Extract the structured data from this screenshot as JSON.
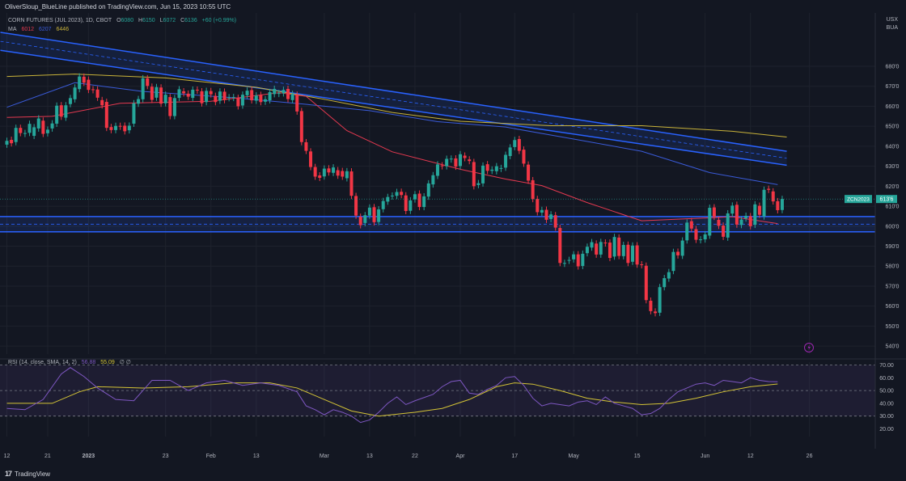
{
  "header": {
    "banner": "OliverSloup_BlueLine published on TradingView.com, Jun 15, 2023 10:55 UTC",
    "symbol_title": "CORN FUTURES (JUL 2023), 1D, CBOT",
    "ohlc": {
      "o_label": "O",
      "o": "6080",
      "h_label": "H",
      "h": "6150",
      "l_label": "L",
      "l": "6072",
      "c_label": "C",
      "c": "6136",
      "change": "+60 (+0.99%)"
    },
    "ma_label": "MA",
    "ma_values": [
      "6012",
      "6207",
      "6446"
    ],
    "currency": "USX",
    "currency_sub": "BUA"
  },
  "colors": {
    "background": "#131722",
    "up": "#26a69a",
    "down": "#f23645",
    "ma_short": "#e53950",
    "ma_mid": "#3a5bd9",
    "ma_long": "#c9b33a",
    "channel": "#2962ff",
    "rsi_line": "#7e57c2",
    "rsi_ma": "#d4c436",
    "rsi_band": "#7e57c2"
  },
  "price_axis": {
    "labels": [
      "680'0",
      "670'0",
      "660'0",
      "650'0",
      "640'0",
      "630'0",
      "620'0",
      "610'0",
      "600'0",
      "590'0",
      "580'0",
      "570'0",
      "560'0",
      "550'0",
      "540'0"
    ],
    "values": [
      680,
      670,
      660,
      650,
      640,
      630,
      620,
      610,
      600,
      590,
      580,
      570,
      560,
      550,
      540
    ],
    "range": [
      536,
      697
    ]
  },
  "current_price": {
    "tag": "ZCN2023",
    "value": "613'6"
  },
  "time_axis": {
    "labels": [
      "12",
      "21",
      "2023",
      "23",
      "Feb",
      "13",
      "Mar",
      "13",
      "22",
      "Apr",
      "17",
      "May",
      "15",
      "Jun",
      "12",
      "26"
    ],
    "bar_index": [
      0,
      9,
      18,
      35,
      45,
      55,
      70,
      80,
      90,
      100,
      112,
      125,
      139,
      154,
      164,
      177
    ]
  },
  "rsi": {
    "legend": "RSI (14, close, SMA, 14, 2)",
    "value1": "56.88",
    "value2": "55.09",
    "extra": "∅ ∅",
    "axis_labels": [
      "70.00",
      "60.00",
      "50.00",
      "40.00",
      "30.00",
      "20.00"
    ],
    "axis_values": [
      70,
      60,
      50,
      40,
      30,
      20
    ],
    "upper": 70,
    "middle": 50,
    "lower": 30
  },
  "footer": {
    "brand": "TradingView"
  },
  "chart_data": {
    "type": "candlestick",
    "title": "CORN FUTURES (JUL 2023), 1D, CBOT",
    "ylim": [
      536,
      697
    ],
    "channel_upper": {
      "x": [
        0,
        172
      ],
      "top": [
        697,
        637.5
      ],
      "bottom": [
        688,
        630.5
      ]
    },
    "support_zone": {
      "top": 604.8,
      "bottom": 597.2
    },
    "candles": [
      [
        640.8,
        642.7
      ],
      [
        643.2,
        641.5
      ],
      [
        642.1,
        649.2
      ],
      [
        649.2,
        646.6
      ],
      [
        646.6,
        646.6
      ],
      [
        646.7,
        651.2
      ],
      [
        645.2,
        649.5
      ],
      [
        648.9,
        653.9
      ],
      [
        652.8,
        646.2
      ],
      [
        646.5,
        648.3
      ],
      [
        648.9,
        651.4
      ],
      [
        651.3,
        660.3
      ],
      [
        660.5,
        654.8
      ],
      [
        654.3,
        660.5
      ],
      [
        661.1,
        664.1
      ],
      [
        663.5,
        669.4
      ],
      [
        668.6,
        674.9
      ],
      [
        674.8,
        671.8
      ],
      [
        673.3,
        668.2
      ],
      [
        668.5,
        668.3
      ],
      [
        668.4,
        664.3
      ],
      [
        663.1,
        660.5
      ],
      [
        662.2,
        649.2
      ],
      [
        649.6,
        648.1
      ],
      [
        648.1,
        650.2
      ],
      [
        650.2,
        650.1
      ],
      [
        650.3,
        647.5
      ],
      [
        648.0,
        650.3
      ],
      [
        651.3,
        661.5
      ],
      [
        661.3,
        663.6
      ],
      [
        663.5,
        674.0
      ],
      [
        674.0,
        670.2
      ],
      [
        669.8,
        663.2
      ],
      [
        664.3,
        669.6
      ],
      [
        669.4,
        661.3
      ],
      [
        661.5,
        665.8
      ],
      [
        664.6,
        655.1
      ],
      [
        655.1,
        664.1
      ],
      [
        664.2,
        668.5
      ],
      [
        667.5,
        666.5
      ],
      [
        666.3,
        664.8
      ],
      [
        664.2,
        668.3
      ],
      [
        668.3,
        668.1
      ],
      [
        667.5,
        661.5
      ],
      [
        662.1,
        667.7
      ],
      [
        667.6,
        666.0
      ],
      [
        665.2,
        662.1
      ],
      [
        662.8,
        667.4
      ],
      [
        667.3,
        663.1
      ],
      [
        664.2,
        664.5
      ],
      [
        664.6,
        664.6
      ],
      [
        664.2,
        660.0
      ],
      [
        660.4,
        665.8
      ],
      [
        665.5,
        667.8
      ],
      [
        668.1,
        663.0
      ],
      [
        662.8,
        665.4
      ],
      [
        665.7,
        662.1
      ],
      [
        662.3,
        663.5
      ],
      [
        663.0,
        667.1
      ],
      [
        666.1,
        668.7
      ],
      [
        666.4,
        666.6
      ],
      [
        666.5,
        668.2
      ],
      [
        668.7,
        663.6
      ],
      [
        663.1,
        666.2
      ],
      [
        665.8,
        657.4
      ],
      [
        657.6,
        642.1
      ],
      [
        642.0,
        637.7
      ],
      [
        637.4,
        629.6
      ],
      [
        629.6,
        624.8
      ],
      [
        625.4,
        624.2
      ],
      [
        624.9,
        628.8
      ],
      [
        628.9,
        626.9
      ],
      [
        626.7,
        629.4
      ],
      [
        628.0,
        625.3
      ],
      [
        627.6,
        624.8
      ],
      [
        624.0,
        627.5
      ],
      [
        627.4,
        615.2
      ],
      [
        615.1,
        605.3
      ],
      [
        604.7,
        600.5
      ],
      [
        601.6,
        605.5
      ],
      [
        605.3,
        609.3
      ],
      [
        609.5,
        602.0
      ],
      [
        602.1,
        608.4
      ],
      [
        608.5,
        612.6
      ],
      [
        612.3,
        614.6
      ],
      [
        615.2,
        615.3
      ],
      [
        615.2,
        617.1
      ],
      [
        617.2,
        615.6
      ],
      [
        615.4,
        607.6
      ],
      [
        607.7,
        612.9
      ],
      [
        613.4,
        616.0
      ],
      [
        616.3,
        609.6
      ],
      [
        609.6,
        614.9
      ],
      [
        614.8,
        621.4
      ],
      [
        620.9,
        625.5
      ],
      [
        625.2,
        630.9
      ],
      [
        630.4,
        630.0
      ],
      [
        630.0,
        633.7
      ],
      [
        633.5,
        633.8
      ],
      [
        633.9,
        629.8
      ],
      [
        630.1,
        636.0
      ],
      [
        635.3,
        634.1
      ],
      [
        633.4,
        632.6
      ],
      [
        632.1,
        620.0
      ],
      [
        620.6,
        621.5
      ],
      [
        621.4,
        630.3
      ],
      [
        631.0,
        627.7
      ],
      [
        627.7,
        628.3
      ],
      [
        627.5,
        630.0
      ],
      [
        629.1,
        629.1
      ],
      [
        629.3,
        635.7
      ],
      [
        635.1,
        639.4
      ],
      [
        639.6,
        643.1
      ],
      [
        643.6,
        637.7
      ],
      [
        638.3,
        631.3
      ],
      [
        630.8,
        622.8
      ],
      [
        623.0,
        613.6
      ],
      [
        613.6,
        607.0
      ],
      [
        606.8,
        608.1
      ],
      [
        608.2,
        603.2
      ],
      [
        603.6,
        605.9
      ],
      [
        605.5,
        599.3
      ],
      [
        599.1,
        581.6
      ],
      [
        581.5,
        581.6
      ],
      [
        582.8,
        583.1
      ],
      [
        583.4,
        585.9
      ],
      [
        585.9,
        579.9
      ],
      [
        580.1,
        586.2
      ],
      [
        586.5,
        589.7
      ],
      [
        589.3,
        592.0
      ],
      [
        591.3,
        585.8
      ],
      [
        585.8,
        592.1
      ],
      [
        591.8,
        591.6
      ],
      [
        591.8,
        584.1
      ],
      [
        584.8,
        594.6
      ],
      [
        594.3,
        585.1
      ],
      [
        585.0,
        590.6
      ],
      [
        590.7,
        581.6
      ],
      [
        582.2,
        590.3
      ],
      [
        590.4,
        580.8
      ],
      [
        580.9,
        580.5
      ],
      [
        580.2,
        563.0
      ],
      [
        562.7,
        557.5
      ],
      [
        557.3,
        556.5
      ],
      [
        556.7,
        569.5
      ],
      [
        569.5,
        574.0
      ],
      [
        573.8,
        577.0
      ],
      [
        577.6,
        587.1
      ],
      [
        587.2,
        585.4
      ],
      [
        585.2,
        592.8
      ],
      [
        592.9,
        601.8
      ],
      [
        602.5,
        598.8
      ],
      [
        598.5,
        593.2
      ],
      [
        593.3,
        593.4
      ],
      [
        593.4,
        595.9
      ],
      [
        595.3,
        609.2
      ],
      [
        609.4,
        604.7
      ],
      [
        603.2,
        600.2
      ],
      [
        600.3,
        594.7
      ],
      [
        594.3,
        606.4
      ],
      [
        606.3,
        610.3
      ],
      [
        610.7,
        600.8
      ],
      [
        600.6,
        603.3
      ],
      [
        603.9,
        605.2
      ],
      [
        605.0,
        600.0
      ],
      [
        600.7,
        610.9
      ],
      [
        610.2,
        605.7
      ],
      [
        604.9,
        618.2
      ],
      [
        618.7,
        618.2
      ],
      [
        617.4,
        612.4
      ],
      [
        612.5,
        608.0
      ],
      [
        608.1,
        613.6
      ]
    ],
    "ma_short": [
      [
        0,
        654.4
      ],
      [
        10,
        655.0
      ],
      [
        25,
        661.5
      ],
      [
        45,
        662.5
      ],
      [
        60,
        666.8
      ],
      [
        66,
        665.0
      ],
      [
        75,
        647.8
      ],
      [
        85,
        637.2
      ],
      [
        100,
        628.5
      ],
      [
        110,
        623.6
      ],
      [
        118,
        620.3
      ],
      [
        128,
        611.8
      ],
      [
        140,
        602.7
      ],
      [
        150,
        603.7
      ],
      [
        160,
        604.7
      ],
      [
        170,
        601.3
      ]
    ],
    "ma_mid": [
      [
        0,
        659.5
      ],
      [
        15,
        671.8
      ],
      [
        30,
        667.4
      ],
      [
        50,
        664.3
      ],
      [
        65,
        661.2
      ],
      [
        80,
        657.8
      ],
      [
        95,
        652.3
      ],
      [
        110,
        649.6
      ],
      [
        125,
        643.6
      ],
      [
        140,
        637.5
      ],
      [
        155,
        626.8
      ],
      [
        170,
        620.8
      ]
    ],
    "ma_long": [
      [
        0,
        674.9
      ],
      [
        15,
        676.1
      ],
      [
        35,
        674.2
      ],
      [
        55,
        669.5
      ],
      [
        70,
        663.5
      ],
      [
        85,
        656.9
      ],
      [
        100,
        652.5
      ],
      [
        120,
        650.3
      ],
      [
        140,
        650.3
      ],
      [
        160,
        647.5
      ],
      [
        172,
        644.6
      ]
    ],
    "rsi_series": [
      [
        0,
        36
      ],
      [
        4,
        35
      ],
      [
        8,
        43
      ],
      [
        12,
        63
      ],
      [
        14,
        68
      ],
      [
        17,
        61
      ],
      [
        20,
        52
      ],
      [
        24,
        43
      ],
      [
        28,
        42
      ],
      [
        32,
        58
      ],
      [
        36,
        58
      ],
      [
        40,
        50
      ],
      [
        44,
        56
      ],
      [
        48,
        58
      ],
      [
        52,
        54
      ],
      [
        56,
        56
      ],
      [
        60,
        54
      ],
      [
        64,
        49
      ],
      [
        66,
        38
      ],
      [
        68,
        35
      ],
      [
        70,
        31
      ],
      [
        72,
        35
      ],
      [
        74,
        33
      ],
      [
        76,
        30
      ],
      [
        78,
        25
      ],
      [
        80,
        27
      ],
      [
        82,
        33
      ],
      [
        84,
        40
      ],
      [
        86,
        45
      ],
      [
        88,
        39
      ],
      [
        90,
        42
      ],
      [
        94,
        47
      ],
      [
        96,
        53
      ],
      [
        98,
        57
      ],
      [
        100,
        58
      ],
      [
        102,
        48
      ],
      [
        104,
        47
      ],
      [
        106,
        51
      ],
      [
        108,
        54
      ],
      [
        110,
        60
      ],
      [
        112,
        61
      ],
      [
        114,
        54
      ],
      [
        116,
        44
      ],
      [
        118,
        38
      ],
      [
        120,
        40
      ],
      [
        122,
        39
      ],
      [
        124,
        38
      ],
      [
        126,
        41
      ],
      [
        128,
        42
      ],
      [
        130,
        39
      ],
      [
        132,
        45
      ],
      [
        134,
        40
      ],
      [
        136,
        38
      ],
      [
        138,
        36
      ],
      [
        140,
        31
      ],
      [
        142,
        32
      ],
      [
        144,
        36
      ],
      [
        146,
        43
      ],
      [
        148,
        49
      ],
      [
        150,
        52
      ],
      [
        152,
        55
      ],
      [
        154,
        56
      ],
      [
        156,
        54
      ],
      [
        158,
        58
      ],
      [
        160,
        57
      ],
      [
        162,
        56
      ],
      [
        164,
        60
      ],
      [
        166,
        58
      ],
      [
        168,
        57
      ],
      [
        170,
        56.9
      ]
    ],
    "rsi_ma_series": [
      [
        0,
        40
      ],
      [
        10,
        40
      ],
      [
        16,
        49
      ],
      [
        20,
        53
      ],
      [
        30,
        52
      ],
      [
        40,
        53
      ],
      [
        50,
        56
      ],
      [
        58,
        56
      ],
      [
        64,
        52
      ],
      [
        70,
        43
      ],
      [
        76,
        34
      ],
      [
        82,
        30
      ],
      [
        90,
        33
      ],
      [
        96,
        36
      ],
      [
        102,
        43
      ],
      [
        108,
        53
      ],
      [
        112,
        56
      ],
      [
        116,
        55
      ],
      [
        122,
        50
      ],
      [
        128,
        44
      ],
      [
        134,
        41
      ],
      [
        140,
        39
      ],
      [
        146,
        40
      ],
      [
        152,
        44
      ],
      [
        158,
        49
      ],
      [
        164,
        53
      ],
      [
        170,
        55.1
      ]
    ]
  }
}
